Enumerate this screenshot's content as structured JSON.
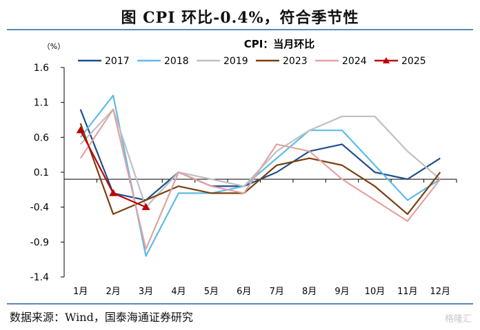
{
  "figure": {
    "title": "图 CPI 环比-0.4%，符合季节性",
    "source": "数据来源：Wind，国泰海通证券研究",
    "watermark": "格隆汇"
  },
  "chart_data": {
    "type": "line",
    "title": "CPI：当月环比",
    "unit_label": "（%）",
    "categories": [
      "1月",
      "2月",
      "3月",
      "4月",
      "5月",
      "6月",
      "7月",
      "8月",
      "9月",
      "10月",
      "11月",
      "12月"
    ],
    "ylim": [
      -1.4,
      1.6
    ],
    "yticks": [
      1.6,
      1.1,
      0.6,
      0.1,
      -0.4,
      -0.9,
      -1.4
    ],
    "baseline": 0,
    "grid": false,
    "legend_position": "top",
    "series": [
      {
        "name": "2017",
        "color": "#1f4e8c",
        "values": [
          1.0,
          -0.2,
          -0.3,
          0.1,
          -0.1,
          -0.1,
          0.1,
          0.4,
          0.5,
          0.1,
          0.0,
          0.3
        ]
      },
      {
        "name": "2018",
        "color": "#5bbbe8",
        "values": [
          0.6,
          1.2,
          -1.1,
          -0.2,
          -0.2,
          -0.1,
          0.3,
          0.7,
          0.7,
          0.2,
          -0.3,
          0.0
        ]
      },
      {
        "name": "2019",
        "color": "#bfbfbf",
        "values": [
          0.5,
          1.0,
          -0.4,
          0.1,
          0.0,
          -0.1,
          0.4,
          0.7,
          0.9,
          0.9,
          0.4,
          0.0
        ]
      },
      {
        "name": "2023",
        "color": "#7a3e0c",
        "values": [
          0.8,
          -0.5,
          -0.3,
          -0.1,
          -0.2,
          -0.2,
          0.2,
          0.3,
          0.2,
          -0.1,
          -0.5,
          0.1
        ]
      },
      {
        "name": "2024",
        "color": "#e3a1a1",
        "values": [
          0.3,
          1.0,
          -1.0,
          0.1,
          -0.1,
          -0.2,
          0.5,
          0.4,
          0.0,
          -0.3,
          -0.6,
          0.0
        ]
      },
      {
        "name": "2025",
        "color": "#c00000",
        "marker": "triangle",
        "values": [
          0.7,
          -0.2,
          -0.4,
          null,
          null,
          null,
          null,
          null,
          null,
          null,
          null,
          null
        ]
      }
    ]
  }
}
